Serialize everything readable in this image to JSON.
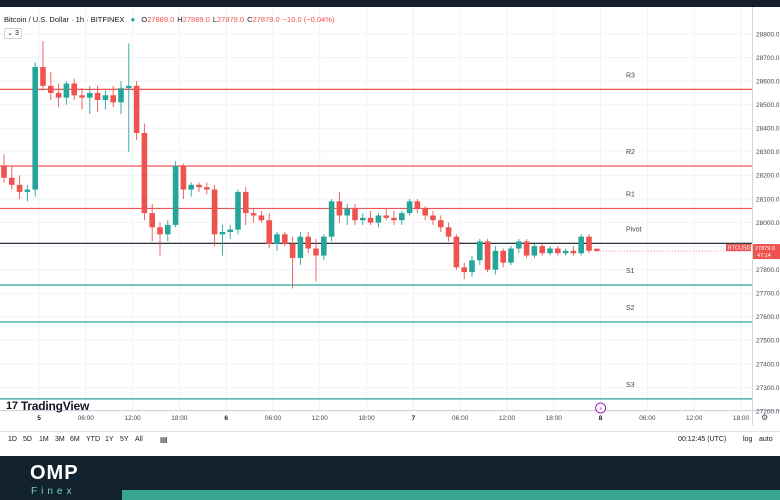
{
  "legend": {
    "title": "Bitcoin / U.S. Dollar · 1h · BITFINEX",
    "o_label": "O",
    "o": "27889.0",
    "h_label": "H",
    "h": "27889.0",
    "l_label": "L",
    "l": "27879.0",
    "c_label": "C",
    "c": "27879.0",
    "change": "−10.0 (−0.04%)",
    "collapse": "3"
  },
  "branding": {
    "tv": "TradingView",
    "omp": "OMP",
    "finex": "Finex"
  },
  "toolbar": {
    "timeframes": [
      "1D",
      "5D",
      "1M",
      "3M",
      "6M",
      "YTD",
      "1Y",
      "5Y",
      "All"
    ],
    "clock": "00:12:45 (UTC)",
    "log": "log",
    "auto": "auto"
  },
  "colors": {
    "up": "#26a69a",
    "down": "#ef5350",
    "resistance": "#ef5350",
    "support": "#26a69a",
    "pivot": "#131722",
    "topbar": "#13202b"
  },
  "chart_data": {
    "type": "candlestick",
    "symbol": "BTCUSD",
    "price_label": "27879.0",
    "price_countdown": "47:14",
    "ylim": [
      27150,
      28900
    ],
    "y_ticks": [
      27200,
      27300,
      27400,
      27500,
      27600,
      27700,
      27800,
      27900,
      28000,
      28100,
      28200,
      28300,
      28400,
      28500,
      28600,
      28700,
      28800
    ],
    "x_ticks": [
      {
        "label": "5",
        "bold": true,
        "i": 5
      },
      {
        "label": "06:00",
        "bold": false,
        "i": 11
      },
      {
        "label": "12:00",
        "bold": false,
        "i": 17
      },
      {
        "label": "18:00",
        "bold": false,
        "i": 23
      },
      {
        "label": "6",
        "bold": true,
        "i": 29
      },
      {
        "label": "06:00",
        "bold": false,
        "i": 35
      },
      {
        "label": "12:00",
        "bold": false,
        "i": 41
      },
      {
        "label": "18:00",
        "bold": false,
        "i": 47
      },
      {
        "label": "7",
        "bold": true,
        "i": 53
      },
      {
        "label": "06:00",
        "bold": false,
        "i": 59
      },
      {
        "label": "12:00",
        "bold": false,
        "i": 65
      },
      {
        "label": "18:00",
        "bold": false,
        "i": 71
      },
      {
        "label": "8",
        "bold": true,
        "i": 77
      },
      {
        "label": "06:00",
        "bold": false,
        "i": 83
      },
      {
        "label": "12:00",
        "bold": false,
        "i": 89
      },
      {
        "label": "18:00",
        "bold": false,
        "i": 95
      }
    ],
    "levels": [
      {
        "name": "R3",
        "value": 28565,
        "kind": "resistance"
      },
      {
        "name": "R2",
        "value": 28240,
        "kind": "resistance"
      },
      {
        "name": "R1",
        "value": 28060,
        "kind": "resistance"
      },
      {
        "name": "Pivot",
        "value": 27912,
        "kind": "pivot"
      },
      {
        "name": "S1",
        "value": 27735,
        "kind": "support"
      },
      {
        "name": "S2",
        "value": 27578,
        "kind": "support"
      },
      {
        "name": "S3",
        "value": 27252,
        "kind": "support"
      }
    ],
    "candles": [
      {
        "o": 28240,
        "h": 28290,
        "l": 28170,
        "c": 28190
      },
      {
        "o": 28190,
        "h": 28240,
        "l": 28140,
        "c": 28160
      },
      {
        "o": 28160,
        "h": 28200,
        "l": 28100,
        "c": 28130
      },
      {
        "o": 28130,
        "h": 28160,
        "l": 28090,
        "c": 28140
      },
      {
        "o": 28140,
        "h": 28680,
        "l": 28110,
        "c": 28660
      },
      {
        "o": 28660,
        "h": 28770,
        "l": 28560,
        "c": 28580
      },
      {
        "o": 28580,
        "h": 28640,
        "l": 28520,
        "c": 28550
      },
      {
        "o": 28550,
        "h": 28590,
        "l": 28490,
        "c": 28530
      },
      {
        "o": 28530,
        "h": 28600,
        "l": 28500,
        "c": 28590
      },
      {
        "o": 28590,
        "h": 28610,
        "l": 28520,
        "c": 28540
      },
      {
        "o": 28540,
        "h": 28570,
        "l": 28480,
        "c": 28530
      },
      {
        "o": 28530,
        "h": 28580,
        "l": 28460,
        "c": 28550
      },
      {
        "o": 28550,
        "h": 28580,
        "l": 28470,
        "c": 28520
      },
      {
        "o": 28520,
        "h": 28560,
        "l": 28480,
        "c": 28540
      },
      {
        "o": 28540,
        "h": 28580,
        "l": 28490,
        "c": 28510
      },
      {
        "o": 28510,
        "h": 28600,
        "l": 28460,
        "c": 28570
      },
      {
        "o": 28570,
        "h": 28760,
        "l": 28300,
        "c": 28580
      },
      {
        "o": 28580,
        "h": 28600,
        "l": 28350,
        "c": 28380
      },
      {
        "o": 28380,
        "h": 28420,
        "l": 28010,
        "c": 28040
      },
      {
        "o": 28040,
        "h": 28080,
        "l": 27920,
        "c": 27980
      },
      {
        "o": 27980,
        "h": 28000,
        "l": 27860,
        "c": 27950
      },
      {
        "o": 27950,
        "h": 28010,
        "l": 27920,
        "c": 27990
      },
      {
        "o": 27990,
        "h": 28260,
        "l": 27980,
        "c": 28240
      },
      {
        "o": 28240,
        "h": 28250,
        "l": 28100,
        "c": 28140
      },
      {
        "o": 28140,
        "h": 28170,
        "l": 28110,
        "c": 28160
      },
      {
        "o": 28160,
        "h": 28170,
        "l": 28130,
        "c": 28150
      },
      {
        "o": 28150,
        "h": 28170,
        "l": 28120,
        "c": 28140
      },
      {
        "o": 28140,
        "h": 28160,
        "l": 27900,
        "c": 27950
      },
      {
        "o": 27950,
        "h": 27990,
        "l": 27860,
        "c": 27960
      },
      {
        "o": 27960,
        "h": 27990,
        "l": 27930,
        "c": 27970
      },
      {
        "o": 27970,
        "h": 28140,
        "l": 27950,
        "c": 28130
      },
      {
        "o": 28130,
        "h": 28150,
        "l": 27990,
        "c": 28040
      },
      {
        "o": 28040,
        "h": 28060,
        "l": 28000,
        "c": 28030
      },
      {
        "o": 28030,
        "h": 28050,
        "l": 28000,
        "c": 28010
      },
      {
        "o": 28010,
        "h": 28040,
        "l": 27890,
        "c": 27910
      },
      {
        "o": 27910,
        "h": 27960,
        "l": 27880,
        "c": 27950
      },
      {
        "o": 27950,
        "h": 27960,
        "l": 27900,
        "c": 27910
      },
      {
        "o": 27910,
        "h": 27940,
        "l": 27720,
        "c": 27850
      },
      {
        "o": 27850,
        "h": 27960,
        "l": 27820,
        "c": 27940
      },
      {
        "o": 27940,
        "h": 27960,
        "l": 27870,
        "c": 27890
      },
      {
        "o": 27890,
        "h": 27930,
        "l": 27750,
        "c": 27860
      },
      {
        "o": 27860,
        "h": 27950,
        "l": 27840,
        "c": 27940
      },
      {
        "o": 27940,
        "h": 28100,
        "l": 27920,
        "c": 28090
      },
      {
        "o": 28090,
        "h": 28130,
        "l": 28000,
        "c": 28030
      },
      {
        "o": 28030,
        "h": 28080,
        "l": 27990,
        "c": 28060
      },
      {
        "o": 28060,
        "h": 28080,
        "l": 27990,
        "c": 28010
      },
      {
        "o": 28010,
        "h": 28040,
        "l": 27990,
        "c": 28020
      },
      {
        "o": 28020,
        "h": 28050,
        "l": 27990,
        "c": 28000
      },
      {
        "o": 28000,
        "h": 28040,
        "l": 27980,
        "c": 28030
      },
      {
        "o": 28030,
        "h": 28060,
        "l": 28010,
        "c": 28020
      },
      {
        "o": 28020,
        "h": 28050,
        "l": 27990,
        "c": 28010
      },
      {
        "o": 28010,
        "h": 28050,
        "l": 27990,
        "c": 28040
      },
      {
        "o": 28040,
        "h": 28100,
        "l": 28030,
        "c": 28090
      },
      {
        "o": 28090,
        "h": 28100,
        "l": 28040,
        "c": 28060
      },
      {
        "o": 28060,
        "h": 28070,
        "l": 28010,
        "c": 28030
      },
      {
        "o": 28030,
        "h": 28050,
        "l": 27990,
        "c": 28010
      },
      {
        "o": 28010,
        "h": 28030,
        "l": 27960,
        "c": 27980
      },
      {
        "o": 27980,
        "h": 28000,
        "l": 27920,
        "c": 27940
      },
      {
        "o": 27940,
        "h": 27950,
        "l": 27800,
        "c": 27810
      },
      {
        "o": 27810,
        "h": 27830,
        "l": 27760,
        "c": 27790
      },
      {
        "o": 27790,
        "h": 27860,
        "l": 27770,
        "c": 27840
      },
      {
        "o": 27840,
        "h": 27930,
        "l": 27820,
        "c": 27920
      },
      {
        "o": 27920,
        "h": 27930,
        "l": 27790,
        "c": 27800
      },
      {
        "o": 27800,
        "h": 27900,
        "l": 27780,
        "c": 27880
      },
      {
        "o": 27880,
        "h": 27890,
        "l": 27810,
        "c": 27830
      },
      {
        "o": 27830,
        "h": 27900,
        "l": 27820,
        "c": 27890
      },
      {
        "o": 27890,
        "h": 27930,
        "l": 27870,
        "c": 27920
      },
      {
        "o": 27920,
        "h": 27930,
        "l": 27850,
        "c": 27860
      },
      {
        "o": 27860,
        "h": 27910,
        "l": 27850,
        "c": 27900
      },
      {
        "o": 27900,
        "h": 27910,
        "l": 27860,
        "c": 27870
      },
      {
        "o": 27870,
        "h": 27900,
        "l": 27860,
        "c": 27890
      },
      {
        "o": 27890,
        "h": 27900,
        "l": 27860,
        "c": 27870
      },
      {
        "o": 27870,
        "h": 27890,
        "l": 27860,
        "c": 27880
      },
      {
        "o": 27880,
        "h": 27900,
        "l": 27860,
        "c": 27870
      },
      {
        "o": 27870,
        "h": 27950,
        "l": 27860,
        "c": 27940
      },
      {
        "o": 27940,
        "h": 27950,
        "l": 27870,
        "c": 27880
      },
      {
        "o": 27889,
        "h": 27889,
        "l": 27879,
        "c": 27879
      }
    ]
  }
}
